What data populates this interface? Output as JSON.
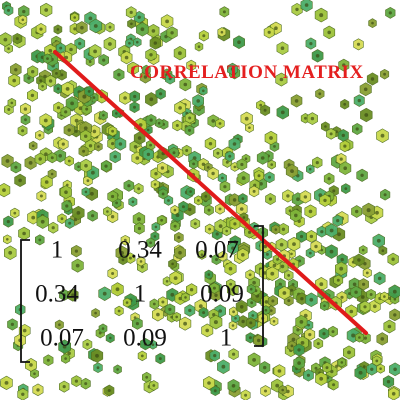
{
  "title": "CORRELATION MATRIX",
  "matrix": {
    "rows": [
      [
        1,
        0.34,
        0.07
      ],
      [
        0.34,
        1,
        0.09
      ],
      [
        0.07,
        0.09,
        1
      ]
    ]
  }
}
